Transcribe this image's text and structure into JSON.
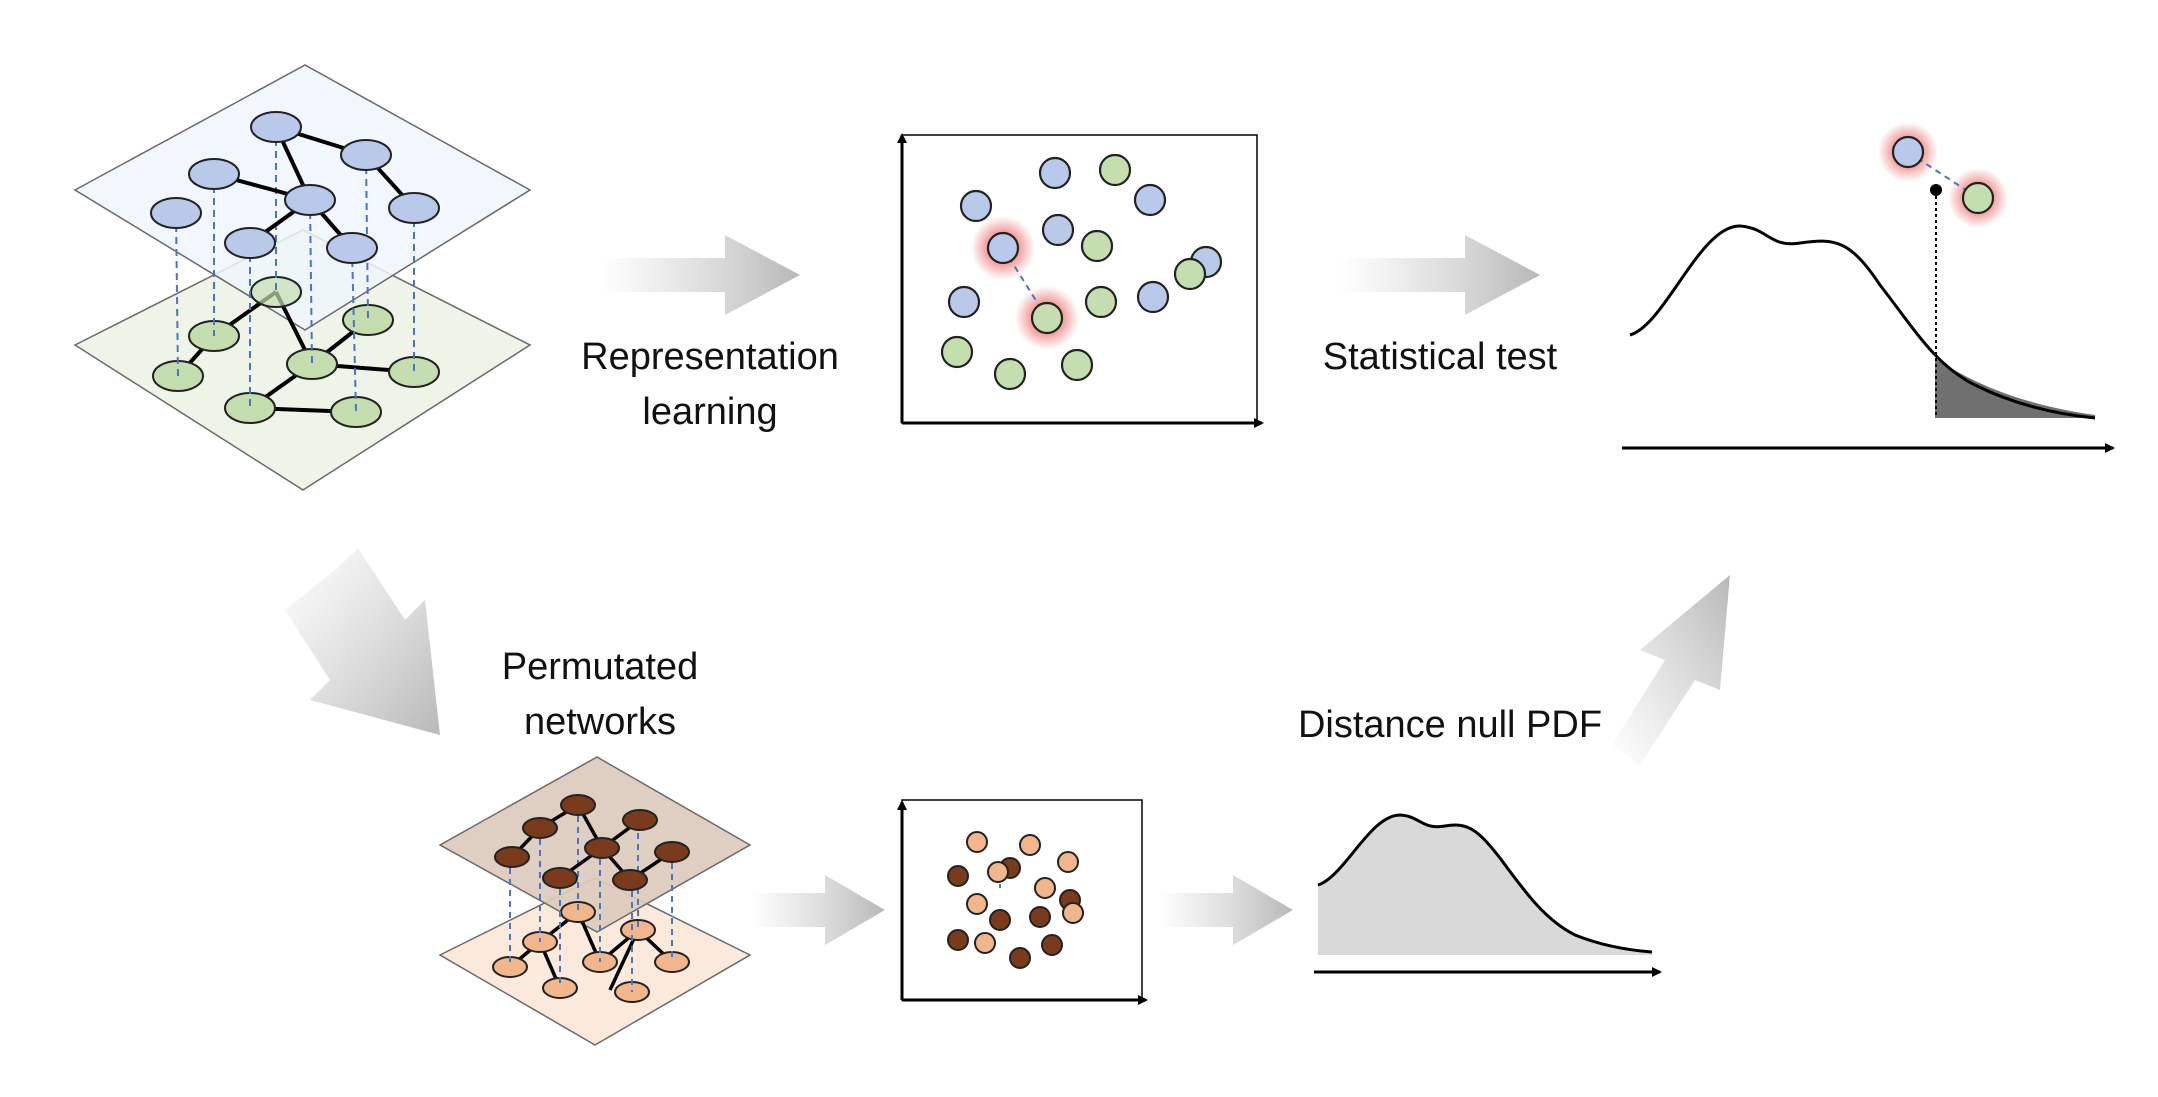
{
  "labels": {
    "representation": [
      "Representation",
      "learning"
    ],
    "statistical_test": "Statistical test",
    "permutated": [
      "Permutated",
      "networks"
    ],
    "null_pdf": "Distance null PDF"
  },
  "colors": {
    "blue_node": "#b8c9ea",
    "green_node": "#c5deb0",
    "dark_node": "#7a3a1c",
    "light_node": "#f1b68c",
    "upper_plane": "#eef6fc",
    "lower_plane": "#eef5e8",
    "perm_upper_plane": "#dccbbd",
    "perm_lower_plane": "#fbe9dc",
    "dashed": "#4a74c4",
    "glow": "#e63c3c",
    "arrow_gray": "#c8c8c8",
    "curve_fill": "#d9d9d9",
    "tail_fill": "#707070"
  },
  "icons": [
    "multiplex-network-icon",
    "embedding-scatter-icon",
    "density-curve-icon"
  ]
}
